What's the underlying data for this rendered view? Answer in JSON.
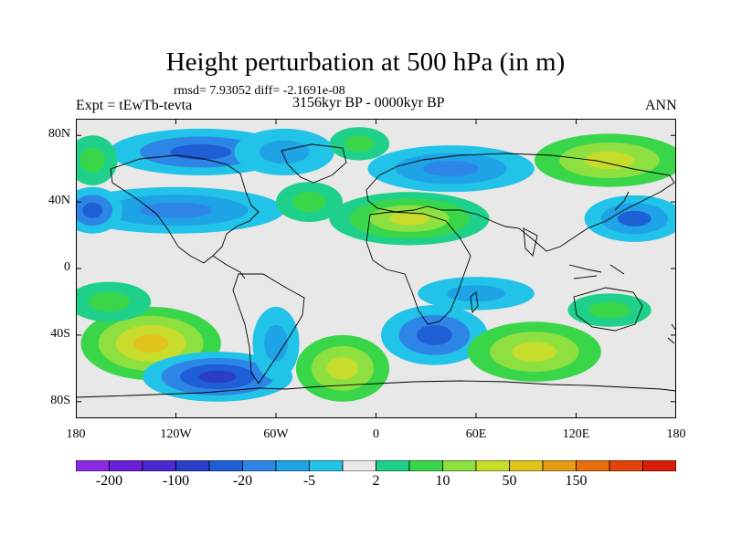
{
  "title": "Height perturbation at 500 hPa (in m)",
  "stats": "rmsd= 7.93052 diff= -2.1691e-08",
  "experiment": "Expt = tEwTb-tevta",
  "period": "3156kyr BP - 0000kyr BP",
  "season": "ANN",
  "axes": {
    "y_ticks": [
      {
        "label": "80N",
        "lat": 80
      },
      {
        "label": "40N",
        "lat": 40
      },
      {
        "label": "0",
        "lat": 0
      },
      {
        "label": "40S",
        "lat": -40
      },
      {
        "label": "80S",
        "lat": -80
      }
    ],
    "x_ticks": [
      {
        "label": "180",
        "lon": -180
      },
      {
        "label": "120W",
        "lon": -120
      },
      {
        "label": "60W",
        "lon": -60
      },
      {
        "label": "0",
        "lon": 0
      },
      {
        "label": "60E",
        "lon": 60
      },
      {
        "label": "120E",
        "lon": 120
      },
      {
        "label": "180",
        "lon": 180
      }
    ],
    "lon_range": [
      -180,
      180
    ],
    "lat_range": [
      -90,
      90
    ]
  },
  "colorbar": {
    "colors": [
      "#8a2be2",
      "#6a1fd8",
      "#4a2ad0",
      "#2a3ec8",
      "#1f5fd6",
      "#2d86e6",
      "#1ea3e6",
      "#22c3e8",
      "#e8e8e8",
      "#1fd08a",
      "#3ad64a",
      "#8ee040",
      "#c8dc2c",
      "#e0c41c",
      "#e89c14",
      "#e8700c",
      "#e0440a",
      "#d81e06"
    ],
    "labels": [
      {
        "text": "-200",
        "boundary": 1
      },
      {
        "text": "-100",
        "boundary": 3
      },
      {
        "text": "-20",
        "boundary": 5
      },
      {
        "text": "-5",
        "boundary": 7
      },
      {
        "text": "2",
        "boundary": 9
      },
      {
        "text": "10",
        "boundary": 11
      },
      {
        "text": "50",
        "boundary": 13
      },
      {
        "text": "150",
        "boundary": 15
      }
    ]
  },
  "field": {
    "background": "#e8e8e8",
    "blobs": [
      {
        "lon": -135,
        "lat": -45,
        "rlon": 42,
        "rlat": 22,
        "colors": [
          "#3ad64a",
          "#8ee040",
          "#c8dc2c",
          "#e0c41c"
        ]
      },
      {
        "lon": -95,
        "lat": -65,
        "rlon": 45,
        "rlat": 15,
        "colors": [
          "#22c3e8",
          "#2d86e6",
          "#1f5fd6",
          "#2a3ec8"
        ]
      },
      {
        "lon": -60,
        "lat": -45,
        "rlon": 14,
        "rlat": 22,
        "colors": [
          "#22c3e8",
          "#1ea3e6"
        ]
      },
      {
        "lon": -20,
        "lat": -60,
        "rlon": 28,
        "rlat": 20,
        "colors": [
          "#3ad64a",
          "#8ee040",
          "#c8dc2c"
        ]
      },
      {
        "lon": 35,
        "lat": -40,
        "rlon": 32,
        "rlat": 18,
        "colors": [
          "#22c3e8",
          "#2d86e6",
          "#1f5fd6"
        ]
      },
      {
        "lon": 95,
        "lat": -50,
        "rlon": 40,
        "rlat": 18,
        "colors": [
          "#3ad64a",
          "#8ee040",
          "#c8dc2c"
        ]
      },
      {
        "lon": -160,
        "lat": -20,
        "rlon": 25,
        "rlat": 12,
        "colors": [
          "#1fd08a",
          "#3ad64a"
        ]
      },
      {
        "lon": -120,
        "lat": 35,
        "rlon": 65,
        "rlat": 14,
        "colors": [
          "#22c3e8",
          "#1ea3e6",
          "#2d86e6"
        ]
      },
      {
        "lon": -170,
        "lat": 35,
        "rlon": 18,
        "rlat": 14,
        "colors": [
          "#22c3e8",
          "#2d86e6",
          "#1f5fd6"
        ]
      },
      {
        "lon": -105,
        "lat": 70,
        "rlon": 55,
        "rlat": 14,
        "colors": [
          "#22c3e8",
          "#2d86e6",
          "#1f5fd6"
        ]
      },
      {
        "lon": -55,
        "lat": 70,
        "rlon": 30,
        "rlat": 14,
        "colors": [
          "#22c3e8",
          "#1ea3e6"
        ]
      },
      {
        "lon": -40,
        "lat": 40,
        "rlon": 20,
        "rlat": 12,
        "colors": [
          "#1fd08a",
          "#3ad64a"
        ]
      },
      {
        "lon": 20,
        "lat": 30,
        "rlon": 48,
        "rlat": 16,
        "colors": [
          "#1fd08a",
          "#3ad64a",
          "#8ee040",
          "#c8dc2c"
        ]
      },
      {
        "lon": 45,
        "lat": 60,
        "rlon": 50,
        "rlat": 14,
        "colors": [
          "#22c3e8",
          "#1ea3e6",
          "#2d86e6"
        ]
      },
      {
        "lon": 140,
        "lat": 65,
        "rlon": 45,
        "rlat": 16,
        "colors": [
          "#3ad64a",
          "#8ee040",
          "#c8dc2c"
        ]
      },
      {
        "lon": 155,
        "lat": 30,
        "rlon": 30,
        "rlat": 14,
        "colors": [
          "#22c3e8",
          "#1ea3e6",
          "#1f5fd6"
        ]
      },
      {
        "lon": 60,
        "lat": -15,
        "rlon": 35,
        "rlat": 10,
        "colors": [
          "#22c3e8",
          "#1ea3e6"
        ]
      },
      {
        "lon": -170,
        "lat": 65,
        "rlon": 15,
        "rlat": 15,
        "colors": [
          "#1fd08a",
          "#3ad64a"
        ]
      },
      {
        "lon": -10,
        "lat": 75,
        "rlon": 18,
        "rlat": 10,
        "colors": [
          "#1fd08a",
          "#3ad64a"
        ]
      },
      {
        "lon": 140,
        "lat": -25,
        "rlon": 25,
        "rlat": 10,
        "colors": [
          "#1fd08a",
          "#3ad64a"
        ]
      }
    ]
  }
}
